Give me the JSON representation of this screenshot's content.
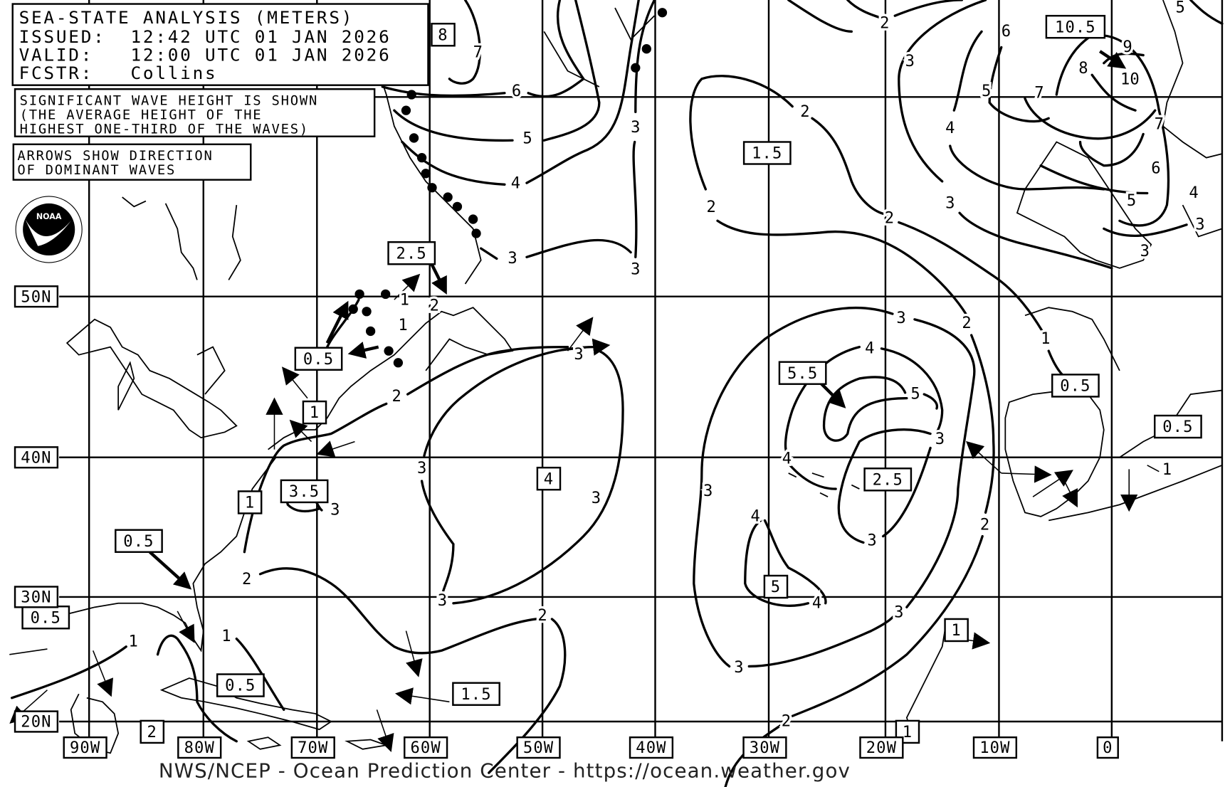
{
  "header": {
    "title": "SEA-STATE ANALYSIS (METERS)",
    "issued": "ISSUED:  12:42 UTC 01 JAN 2026",
    "valid": "VALID:   12:00 UTC 01 JAN 2026",
    "forecaster": "FCSTR:   Collins"
  },
  "notes": {
    "wave_height": [
      "SIGNIFICANT WAVE HEIGHT IS SHOWN",
      "(THE AVERAGE HEIGHT OF THE",
      "HIGHEST ONE-THIRD OF THE WAVES)"
    ],
    "arrows": [
      "ARROWS SHOW DIRECTION",
      "OF DOMINANT WAVES"
    ]
  },
  "logo": {
    "text": "NOAA",
    "ring": "NATIONAL OCEANIC AND ATMOSPHERIC ADMINISTRATION - U.S. DEPARTMENT OF COMMERCE"
  },
  "latitude_labels": [
    "50N",
    "40N",
    "30N",
    "20N"
  ],
  "longitude_labels": [
    "90W",
    "80W",
    "70W",
    "60W",
    "50W",
    "40W",
    "30W",
    "20W",
    "10W",
    "0"
  ],
  "boxed_values": [
    "8",
    "10.5",
    "1.5",
    "2.5",
    "0.5",
    "1",
    "3.5",
    "1",
    "4",
    "0.5",
    "0.5",
    "0.5",
    "1.5",
    "2",
    "5.5",
    "2.5",
    "5",
    "0.5",
    "0.5",
    "1",
    "1"
  ],
  "contour_labels": [
    "7",
    "6",
    "5",
    "4",
    "3",
    "3",
    "3",
    "2",
    "3",
    "6",
    "5",
    "7",
    "4",
    "2",
    "2",
    "2",
    "3",
    "9",
    "8",
    "10",
    "7",
    "6",
    "5",
    "4",
    "3",
    "3",
    "5",
    "1",
    "2",
    "1",
    "2",
    "3",
    "3",
    "3",
    "3",
    "2",
    "3",
    "2",
    "1",
    "1",
    "3",
    "2",
    "1",
    "4",
    "5",
    "3",
    "4",
    "3",
    "4",
    "3",
    "2",
    "4",
    "3",
    "3",
    "2",
    "1"
  ],
  "footer": "NWS/NCEP - Ocean Prediction Center - https://ocean.weather.gov",
  "colors": {
    "ink": "#000000",
    "background": "#ffffff"
  }
}
